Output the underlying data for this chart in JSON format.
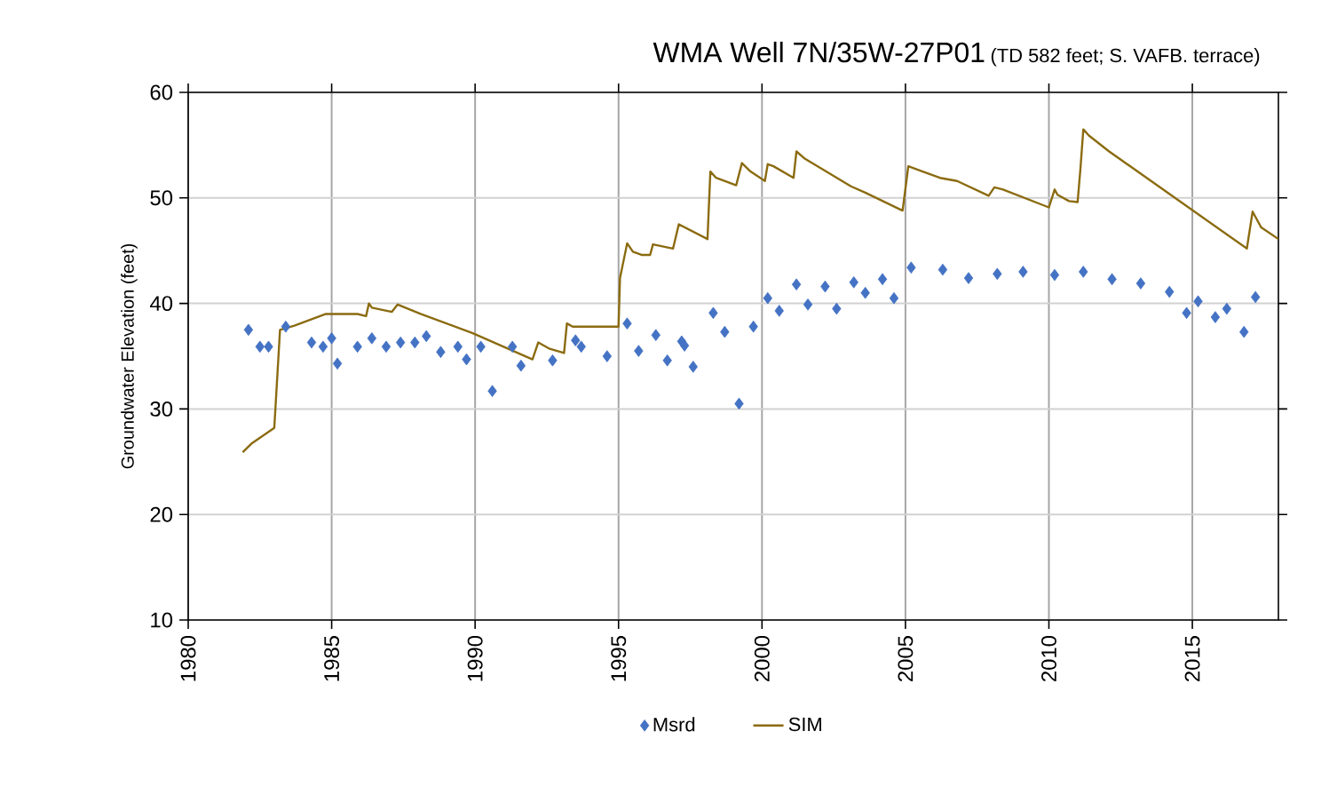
{
  "chart_data": {
    "type": "line",
    "title": "WMA Well 7N/35W-27P01",
    "subtitle": "(TD 582 feet; S. VAFB. terrace)",
    "ylabel": "Groundwater Elevation (feet)",
    "xlim": [
      1980,
      2018
    ],
    "xticks": [
      1980,
      1985,
      1990,
      1995,
      2000,
      2005,
      2010,
      2015
    ],
    "ylim": [
      10,
      60
    ],
    "yticks": [
      10,
      20,
      30,
      40,
      50,
      60
    ],
    "grid": true,
    "legend": "bottom",
    "series": [
      {
        "name": "Msrd",
        "type": "scatter",
        "marker": "diamond",
        "color": "#4472c4",
        "x": [
          1982.1,
          1982.5,
          1982.8,
          1983.4,
          1984.3,
          1984.7,
          1985.0,
          1985.2,
          1985.9,
          1986.4,
          1986.9,
          1987.4,
          1987.9,
          1988.3,
          1988.8,
          1989.4,
          1989.7,
          1990.2,
          1990.6,
          1991.3,
          1991.6,
          1992.7,
          1993.5,
          1993.7,
          1994.6,
          1995.3,
          1995.7,
          1996.3,
          1996.7,
          1997.2,
          1997.3,
          1997.6,
          1998.3,
          1998.7,
          1999.2,
          1999.7,
          2000.2,
          2000.6,
          2001.2,
          2001.6,
          2002.2,
          2002.6,
          2003.2,
          2003.6,
          2004.2,
          2004.6,
          2005.2,
          2006.3,
          2007.2,
          2008.2,
          2009.1,
          2010.2,
          2011.2,
          2012.2,
          2013.2,
          2014.2,
          2014.8,
          2015.2,
          2015.8,
          2016.2,
          2016.8,
          2017.2
        ],
        "values": [
          37.5,
          35.9,
          35.9,
          37.8,
          36.3,
          35.9,
          36.7,
          34.3,
          35.9,
          36.7,
          35.9,
          36.3,
          36.3,
          36.9,
          35.4,
          35.9,
          34.7,
          35.9,
          31.7,
          35.9,
          34.1,
          34.6,
          36.5,
          35.9,
          35.0,
          38.1,
          35.5,
          37.0,
          34.6,
          36.4,
          36.0,
          34.0,
          39.1,
          37.3,
          30.5,
          37.8,
          40.5,
          39.3,
          41.8,
          39.9,
          41.6,
          39.5,
          42.0,
          41.0,
          42.3,
          40.5,
          43.4,
          43.2,
          42.4,
          42.8,
          43.0,
          42.7,
          43.0,
          42.3,
          41.9,
          41.1,
          39.1,
          40.2,
          38.7,
          39.5,
          37.3,
          40.6
        ]
      },
      {
        "name": "SIM",
        "marker": "none",
        "color": "#8b6b10",
        "x": [
          1981.9,
          1982.2,
          1983.0,
          1983.2,
          1983.7,
          1984.8,
          1985.9,
          1986.2,
          1986.3,
          1986.4,
          1987.1,
          1987.3,
          1988.1,
          1989.9,
          1992.0,
          1992.2,
          1992.6,
          1993.1,
          1993.2,
          1993.4,
          1995.0,
          1995.05,
          1995.3,
          1995.5,
          1995.8,
          1996.1,
          1996.2,
          1996.9,
          1997.1,
          1998.1,
          1998.2,
          1998.4,
          1999.1,
          1999.3,
          1999.6,
          2000.1,
          2000.2,
          2000.4,
          2001.1,
          2001.2,
          2001.5,
          2003.1,
          2003.6,
          2004.9,
          2005.1,
          2005.6,
          2006.2,
          2006.8,
          2007.9,
          2008.1,
          2008.4,
          2010.0,
          2010.2,
          2010.3,
          2010.7,
          2011.0,
          2011.1,
          2011.2,
          2011.4,
          2012.1,
          2016.9,
          2017.1,
          2017.4,
          2018.0
        ],
        "values": [
          25.9,
          26.7,
          28.2,
          37.5,
          37.9,
          39.0,
          39.0,
          38.8,
          40.0,
          39.6,
          39.2,
          39.9,
          39.0,
          37.2,
          34.7,
          36.3,
          35.7,
          35.3,
          38.1,
          37.8,
          37.8,
          42.4,
          45.7,
          44.9,
          44.6,
          44.6,
          45.6,
          45.2,
          47.5,
          46.1,
          52.5,
          51.9,
          51.2,
          53.3,
          52.5,
          51.6,
          53.2,
          53.0,
          51.9,
          54.4,
          53.7,
          51.1,
          50.5,
          48.8,
          53.0,
          52.5,
          51.9,
          51.6,
          50.2,
          51.0,
          50.8,
          49.1,
          50.8,
          50.3,
          49.7,
          49.6,
          52.8,
          56.5,
          55.9,
          54.4,
          45.2,
          48.7,
          47.2,
          46.1
        ]
      }
    ]
  }
}
